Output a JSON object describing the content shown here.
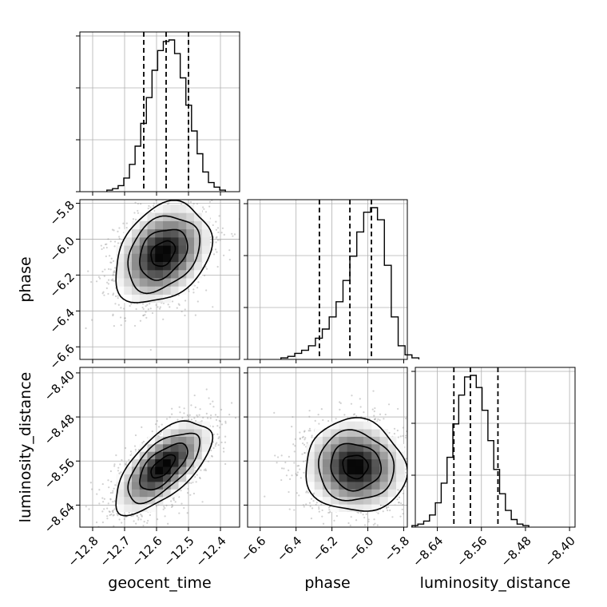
{
  "chart_data": {
    "type": "corner",
    "parameters": [
      {
        "name": "geocent_time",
        "label": "geocent_time",
        "range": [
          -12.84,
          -12.34
        ],
        "ticks": [
          -12.8,
          -12.7,
          -12.6,
          -12.5,
          -12.4
        ],
        "tick_labels": [
          "−12.8",
          "−12.7",
          "−12.6",
          "−12.5",
          "−12.4"
        ],
        "quantiles": [
          -12.64,
          -12.57,
          -12.5
        ]
      },
      {
        "name": "phase",
        "label": "phase",
        "range": [
          -6.67,
          -5.78
        ],
        "ticks": [
          -6.6,
          -6.4,
          -6.2,
          -6.0,
          -5.8
        ],
        "tick_labels": [
          "−6.6",
          "−6.4",
          "−6.2",
          "−6.0",
          "−5.8"
        ],
        "quantiles": [
          -6.27,
          -6.1,
          -5.98
        ]
      },
      {
        "name": "luminosity_distance",
        "label": "luminosity_distance",
        "range": [
          -8.68,
          -8.39
        ],
        "ticks": [
          -8.64,
          -8.56,
          -8.48,
          -8.4
        ],
        "tick_labels": [
          "−8.64",
          "−8.56",
          "−8.48",
          "−8.40"
        ],
        "quantiles": [
          -8.61,
          -8.58,
          -8.53
        ]
      }
    ],
    "histograms": [
      {
        "parameter": "geocent_time",
        "counts": [
          1,
          2,
          4,
          9,
          18,
          30,
          45,
          62,
          80,
          93,
          99,
          100,
          91,
          75,
          57,
          40,
          25,
          13,
          6,
          3,
          1
        ]
      },
      {
        "parameter": "phase",
        "counts": [
          1,
          2,
          4,
          6,
          9,
          14,
          20,
          28,
          38,
          52,
          68,
          84,
          97,
          100,
          92,
          62,
          28,
          9,
          3,
          1
        ]
      },
      {
        "parameter": "luminosity_distance",
        "counts": [
          1,
          2,
          4,
          8,
          16,
          29,
          46,
          68,
          87,
          99,
          100,
          92,
          77,
          57,
          38,
          22,
          11,
          5,
          2,
          1
        ]
      }
    ],
    "pairs": [
      {
        "x": "geocent_time",
        "y": "phase",
        "correlation": 0.3,
        "center": [
          -12.58,
          -6.08
        ],
        "sigma": [
          0.075,
          0.14
        ]
      },
      {
        "x": "geocent_time",
        "y": "luminosity_distance",
        "correlation": 0.65,
        "center": [
          -12.58,
          -8.57
        ],
        "sigma": [
          0.075,
          0.042
        ]
      },
      {
        "x": "phase",
        "y": "luminosity_distance",
        "correlation": -0.05,
        "center": [
          -6.07,
          -8.57
        ],
        "sigma": [
          0.14,
          0.042
        ]
      }
    ],
    "contour_levels": [
      0.5,
      1.0,
      1.5,
      2.0
    ],
    "grid": true
  }
}
